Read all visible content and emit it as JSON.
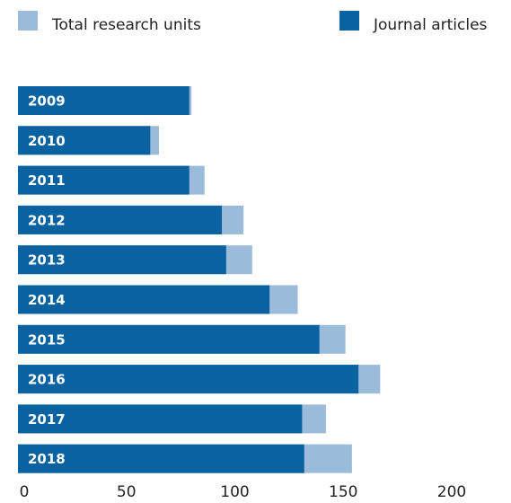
{
  "chart_data": {
    "type": "bar",
    "orientation": "horizontal",
    "overlap": true,
    "categories": [
      "2009",
      "2010",
      "2011",
      "2012",
      "2013",
      "2014",
      "2015",
      "2016",
      "2017",
      "2018"
    ],
    "series": [
      {
        "name": "Total research units",
        "color": "#9bbbdb",
        "values": [
          80,
          65,
          86,
          104,
          108,
          129,
          151,
          167,
          142,
          154
        ]
      },
      {
        "name": "Journal articles",
        "color": "#0a63a0",
        "values": [
          79,
          61,
          79,
          94,
          96,
          116,
          139,
          157,
          131,
          132
        ]
      }
    ],
    "xlim": [
      0,
      200
    ],
    "xticks": [
      0,
      50,
      100,
      150,
      200
    ],
    "legend": "top"
  }
}
